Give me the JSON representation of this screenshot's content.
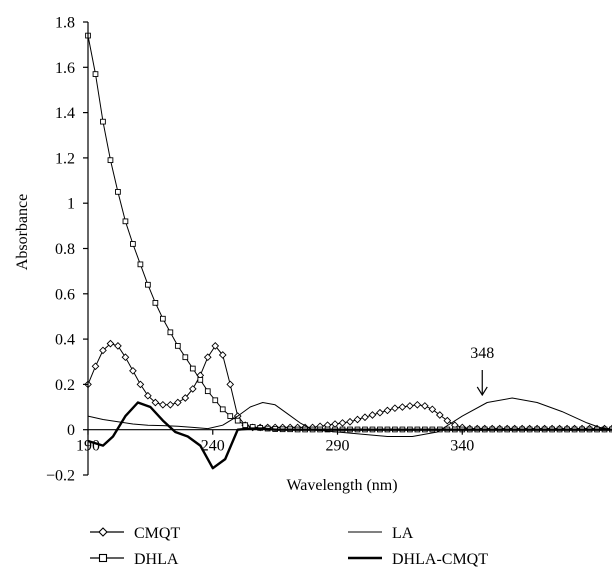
{
  "chart_data": {
    "type": "line",
    "title": "",
    "xlabel": "Wavelength (nm)",
    "ylabel": "Absorbance",
    "xlim": [
      190,
      400
    ],
    "ylim": [
      -0.2,
      1.8
    ],
    "x_ticks": [
      190,
      240,
      290,
      340
    ],
    "x_tick_labels": [
      "190",
      "240",
      "290",
      "340"
    ],
    "y_ticks": [
      -0.2,
      0,
      0.2,
      0.4,
      0.6,
      0.8,
      1,
      1.2,
      1.4,
      1.6,
      1.8
    ],
    "y_tick_labels": [
      "−0.2",
      "0",
      "0.2",
      "0.4",
      "0.6",
      "0.8",
      "1",
      "1.2",
      "1.4",
      "1.6",
      "1.8"
    ],
    "grid": false,
    "legend_position": "bottom",
    "annotation": {
      "text": "348",
      "x": 348,
      "y": 0.14
    },
    "series": [
      {
        "name": "CMQT",
        "marker": "diamond",
        "line_weight": "thin",
        "x": [
          190,
          193,
          196,
          199,
          202,
          205,
          208,
          211,
          214,
          217,
          220,
          223,
          226,
          229,
          232,
          235,
          238,
          241,
          244,
          247,
          250,
          253,
          256,
          259,
          262,
          265,
          268,
          271,
          274,
          277,
          280,
          283,
          286,
          289,
          292,
          295,
          298,
          301,
          304,
          307,
          310,
          313,
          316,
          319,
          322,
          325,
          328,
          331,
          334,
          337,
          340,
          343,
          346,
          349,
          352,
          355,
          358,
          361,
          364,
          367,
          370,
          373,
          376,
          379,
          382,
          385,
          388,
          391,
          394,
          397,
          400
        ],
        "y": [
          0.2,
          0.28,
          0.35,
          0.38,
          0.37,
          0.32,
          0.26,
          0.2,
          0.15,
          0.12,
          0.11,
          0.11,
          0.12,
          0.14,
          0.18,
          0.24,
          0.32,
          0.37,
          0.33,
          0.2,
          0.06,
          0.02,
          0.01,
          0.01,
          0.01,
          0.01,
          0.01,
          0.01,
          0.01,
          0.01,
          0.01,
          0.015,
          0.02,
          0.025,
          0.03,
          0.035,
          0.045,
          0.055,
          0.065,
          0.075,
          0.085,
          0.095,
          0.1,
          0.105,
          0.11,
          0.105,
          0.09,
          0.065,
          0.04,
          0.02,
          0.01,
          0.005,
          0.005,
          0.005,
          0.005,
          0.005,
          0.005,
          0.005,
          0.005,
          0.005,
          0.005,
          0.005,
          0.005,
          0.005,
          0.005,
          0.005,
          0.005,
          0.005,
          0.005,
          0.005,
          0.005
        ]
      },
      {
        "name": "DHLA",
        "marker": "square",
        "line_weight": "thin",
        "x": [
          190,
          193,
          196,
          199,
          202,
          205,
          208,
          211,
          214,
          217,
          220,
          223,
          226,
          229,
          232,
          235,
          238,
          241,
          244,
          247,
          250,
          253,
          256,
          259,
          262,
          265,
          268,
          271,
          274,
          277,
          280,
          283,
          286,
          289,
          292,
          295,
          298,
          301,
          304,
          307,
          310,
          313,
          316,
          319,
          322,
          325,
          328,
          331,
          334,
          337,
          340,
          343,
          346,
          349,
          352,
          355,
          358,
          361,
          364,
          367,
          370,
          373,
          376,
          379,
          382,
          385,
          388,
          391,
          394,
          397,
          400
        ],
        "y": [
          1.74,
          1.57,
          1.36,
          1.19,
          1.05,
          0.92,
          0.82,
          0.73,
          0.64,
          0.56,
          0.49,
          0.43,
          0.37,
          0.32,
          0.27,
          0.22,
          0.17,
          0.13,
          0.09,
          0.06,
          0.04,
          0.02,
          0.012,
          0.008,
          0.005,
          0.003,
          0.002,
          0.002,
          0.001,
          0.001,
          0.001,
          0.001,
          0.001,
          0.001,
          0.001,
          0.001,
          0.001,
          0.001,
          0.001,
          0.001,
          0.001,
          0.001,
          0.001,
          0.001,
          0.001,
          0.001,
          0.001,
          0.001,
          0.001,
          0.001,
          0.001,
          0.001,
          0.001,
          0.001,
          0.001,
          0.001,
          0.001,
          0.001,
          0.001,
          0.001,
          0.001,
          0.001,
          0.001,
          0.001,
          0.001,
          0.001,
          0.001,
          0.001,
          0.001,
          0.001,
          0.001
        ]
      },
      {
        "name": "LA",
        "marker": "none",
        "line_weight": "thin",
        "x": [
          190,
          196,
          202,
          208,
          214,
          220,
          226,
          232,
          238,
          244,
          250,
          255,
          260,
          265,
          270,
          275,
          280,
          290,
          300,
          310,
          320,
          330,
          340,
          350,
          360,
          370,
          380,
          390,
          395,
          400
        ],
        "y": [
          0.06,
          0.045,
          0.035,
          0.025,
          0.02,
          0.018,
          0.015,
          0.01,
          0.005,
          0.02,
          0.06,
          0.1,
          0.12,
          0.11,
          0.07,
          0.03,
          0.0,
          -0.01,
          -0.02,
          -0.03,
          -0.03,
          -0.01,
          0.06,
          0.12,
          0.14,
          0.12,
          0.08,
          0.03,
          0.01,
          0.0
        ]
      },
      {
        "name": "DHLA-CMQT",
        "marker": "none",
        "line_weight": "bold",
        "x": [
          190,
          196,
          200,
          205,
          210,
          215,
          220,
          225,
          230,
          235,
          240,
          245,
          250,
          255,
          260,
          265,
          270,
          280,
          290,
          300,
          310,
          320,
          330,
          340,
          350,
          360,
          370,
          380,
          390,
          400
        ],
        "y": [
          -0.05,
          -0.07,
          -0.03,
          0.06,
          0.12,
          0.1,
          0.04,
          -0.01,
          -0.03,
          -0.07,
          -0.17,
          -0.13,
          0.0,
          0.005,
          0.005,
          0.0,
          0.0,
          0.0,
          0.0,
          0.0,
          0.0,
          0.0,
          0.0,
          0.0,
          0.0,
          0.0,
          0.0,
          0.0,
          0.0,
          0.0
        ]
      }
    ]
  }
}
